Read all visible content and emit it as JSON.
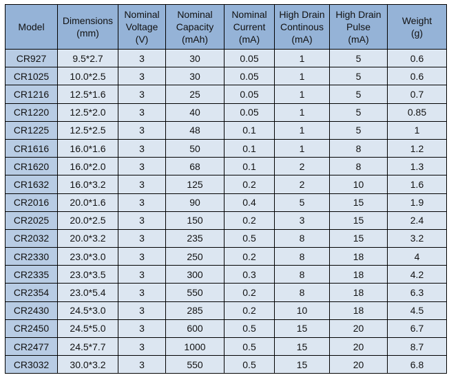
{
  "colors": {
    "header": "#95b3d7",
    "model_column": "#b8cce4",
    "cell": "#dce6f1"
  },
  "headers": [
    [
      "Model"
    ],
    [
      "Dimensions",
      "(mm)"
    ],
    [
      "Nominal",
      "Voltage",
      "(V)"
    ],
    [
      "Nominal",
      "Capacity",
      "(mAh)"
    ],
    [
      "Nominal",
      "Current",
      "(mA)"
    ],
    [
      "High Drain",
      "Continous",
      "(mA)"
    ],
    [
      "High Drain",
      "Pulse",
      "(mA)"
    ],
    [
      "Weight",
      "(g)"
    ]
  ],
  "rows": [
    [
      "CR927",
      "9.5*2.7",
      "3",
      "30",
      "0.05",
      "1",
      "5",
      "0.6"
    ],
    [
      "CR1025",
      "10.0*2.5",
      "3",
      "30",
      "0.05",
      "1",
      "5",
      "0.6"
    ],
    [
      "CR1216",
      "12.5*1.6",
      "3",
      "25",
      "0.05",
      "1",
      "5",
      "0.7"
    ],
    [
      "CR1220",
      "12.5*2.0",
      "3",
      "40",
      "0.05",
      "1",
      "5",
      "0.85"
    ],
    [
      "CR1225",
      "12.5*2.5",
      "3",
      "48",
      "0.1",
      "1",
      "5",
      "1"
    ],
    [
      "CR1616",
      "16.0*1.6",
      "3",
      "50",
      "0.1",
      "1",
      "8",
      "1.2"
    ],
    [
      "CR1620",
      "16.0*2.0",
      "3",
      "68",
      "0.1",
      "2",
      "8",
      "1.3"
    ],
    [
      "CR1632",
      "16.0*3.2",
      "3",
      "125",
      "0.2",
      "2",
      "10",
      "1.6"
    ],
    [
      "CR2016",
      "20.0*1.6",
      "3",
      "90",
      "0.4",
      "5",
      "15",
      "1.9"
    ],
    [
      "CR2025",
      "20.0*2.5",
      "3",
      "150",
      "0.2",
      "3",
      "15",
      "2.4"
    ],
    [
      "CR2032",
      "20.0*3.2",
      "3",
      "235",
      "0.5",
      "8",
      "15",
      "3.2"
    ],
    [
      "CR2330",
      "23.0*3.0",
      "3",
      "250",
      "0.2",
      "8",
      "18",
      "4"
    ],
    [
      "CR2335",
      "23.0*3.5",
      "3",
      "300",
      "0.3",
      "8",
      "18",
      "4.2"
    ],
    [
      "CR2354",
      "23.0*5.4",
      "3",
      "550",
      "0.2",
      "8",
      "18",
      "6.3"
    ],
    [
      "CR2430",
      "24.5*3.0",
      "3",
      "285",
      "0.2",
      "10",
      "18",
      "4.5"
    ],
    [
      "CR2450",
      "24.5*5.0",
      "3",
      "600",
      "0.5",
      "15",
      "20",
      "6.7"
    ],
    [
      "CR2477",
      "24.5*7.7",
      "3",
      "1000",
      "0.5",
      "15",
      "20",
      "8.7"
    ],
    [
      "CR3032",
      "30.0*3.2",
      "3",
      "550",
      "0.5",
      "15",
      "20",
      "6.8"
    ]
  ]
}
